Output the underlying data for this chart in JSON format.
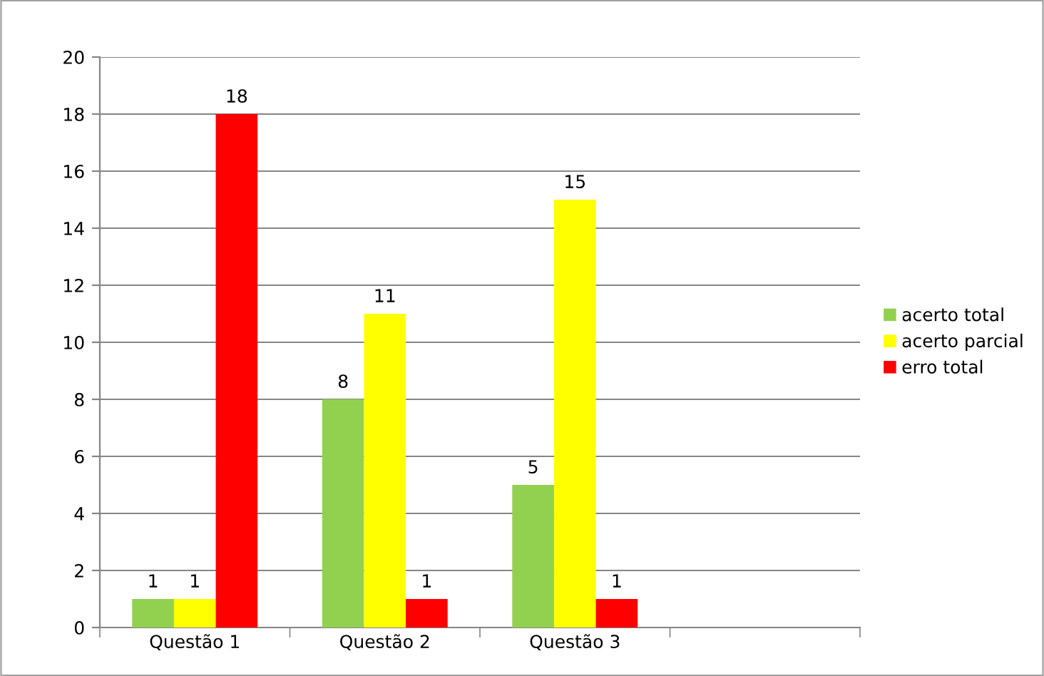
{
  "chart_data": {
    "type": "bar",
    "categories": [
      "Questão 1",
      "Questão 2",
      "Questão 3",
      null
    ],
    "series": [
      {
        "name": "acerto total",
        "color": "#92d050",
        "values": [
          1,
          8,
          5,
          null
        ]
      },
      {
        "name": "acerto parcial",
        "color": "#ffff00",
        "values": [
          1,
          11,
          15,
          null
        ]
      },
      {
        "name": "erro total",
        "color": "#ff0000",
        "values": [
          18,
          1,
          1,
          null
        ]
      }
    ],
    "ylim": [
      0,
      20
    ],
    "yticks": [
      0,
      2,
      4,
      6,
      8,
      10,
      12,
      14,
      16,
      18,
      20
    ],
    "grid": "y",
    "legend": "right",
    "data_labels": true
  }
}
